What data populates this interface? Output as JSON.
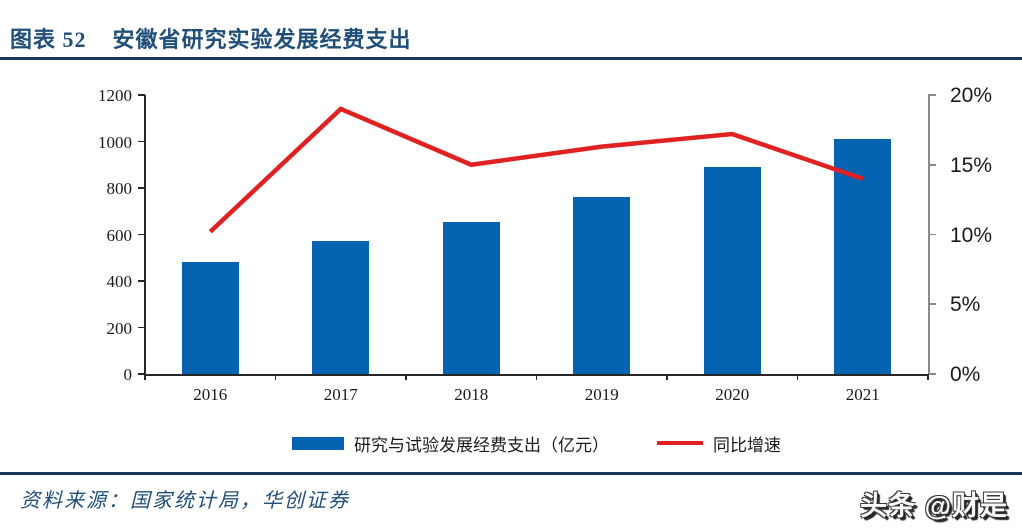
{
  "header": {
    "figure_label": "图表 52",
    "title": "安徽省研究实验发展经费支出"
  },
  "chart_data": {
    "type": "bar",
    "subtype": "bar+line combo",
    "categories": [
      "2016",
      "2017",
      "2018",
      "2019",
      "2020",
      "2021"
    ],
    "series": [
      {
        "name": "研究与试验发展经费支出（亿元）",
        "type": "bar",
        "axis": "left",
        "color": "#0663B2",
        "values": [
          480,
          570,
          655,
          760,
          890,
          1010
        ]
      },
      {
        "name": "同比增速",
        "type": "line",
        "axis": "right",
        "color": "#E02121",
        "values": [
          10.2,
          19.0,
          15.0,
          16.3,
          17.2,
          14.0
        ]
      }
    ],
    "left_axis": {
      "min": 0,
      "max": 1200,
      "step": 200,
      "ticks": [
        "0",
        "200",
        "400",
        "600",
        "800",
        "1000",
        "1200"
      ]
    },
    "right_axis": {
      "min": 0,
      "max": 20,
      "step": 5,
      "ticks": [
        "0%",
        "5%",
        "10%",
        "15%",
        "20%"
      ]
    },
    "grid": false,
    "legend_position": "bottom",
    "title": "安徽省研究实验发展经费支出"
  },
  "footer": {
    "source": "资料来源：国家统计局，华创证券",
    "watermark": "头条 @财是"
  },
  "colors": {
    "title_navy": "#1F4E79",
    "rule_navy": "#17375E",
    "bar_blue": "#0663B2",
    "line_red": "#E02121"
  }
}
